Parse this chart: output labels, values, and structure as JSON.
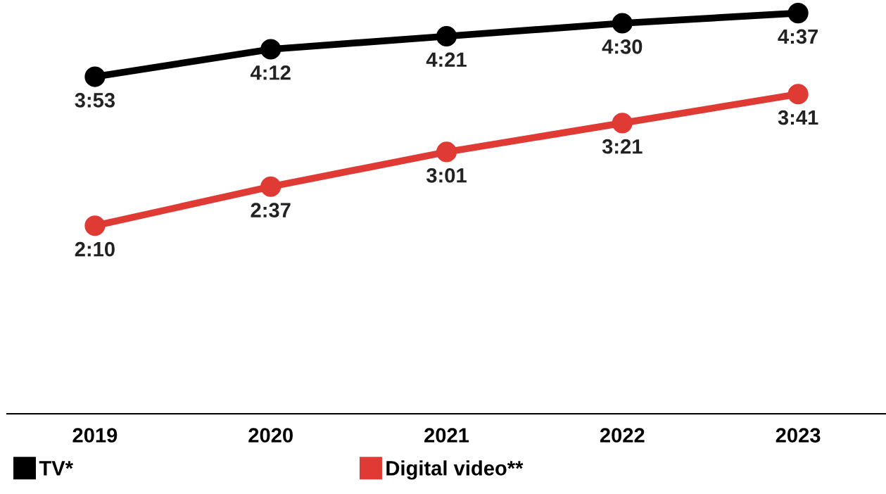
{
  "chart_data": {
    "type": "line",
    "categories": [
      "2019",
      "2020",
      "2021",
      "2022",
      "2023"
    ],
    "series": [
      {
        "name": "TV*",
        "color": "#000000",
        "values": [
          233,
          252,
          261,
          270,
          277
        ],
        "value_labels": [
          "3:53",
          "4:12",
          "4:21",
          "4:30",
          "4:37"
        ]
      },
      {
        "name": "Digital video**",
        "color": "#e03a35",
        "values": [
          130,
          157,
          181,
          201,
          221
        ],
        "value_labels": [
          "2:10",
          "2:37",
          "3:01",
          "3:21",
          "3:41"
        ]
      }
    ],
    "tick_labels": "x",
    "marker": "circle",
    "line_style": "solid",
    "grid": false,
    "legend": "bottom left"
  }
}
